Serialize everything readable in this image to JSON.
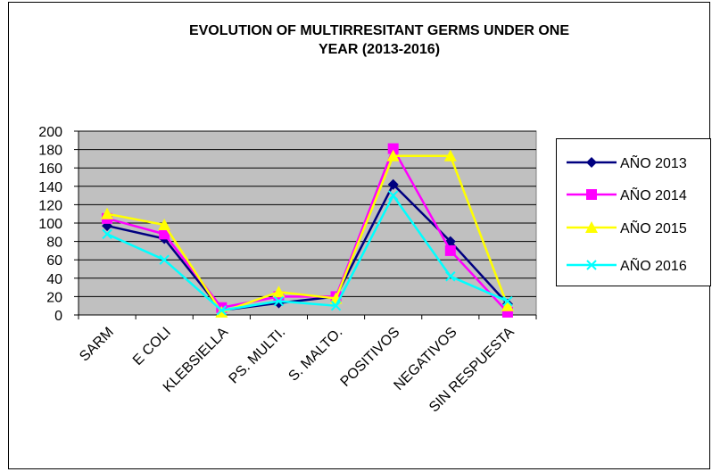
{
  "chart_data": {
    "type": "line",
    "title": [
      "EVOLUTION OF MULTIRRESITANT  GERMS UNDER ONE",
      "YEAR (2013-2016)"
    ],
    "categories": [
      "SARM",
      "E COLI",
      "KLEBSIELLA",
      "PS. MULTI.",
      "S. MALTO.",
      "POSITIVOS",
      "NEGATIVOS",
      "SIN RESPUESTA"
    ],
    "series": [
      {
        "name": "AÑO 2013",
        "color": "#000080",
        "marker": "diamond",
        "values": [
          97,
          83,
          5,
          13,
          20,
          142,
          80,
          12
        ]
      },
      {
        "name": "AÑO 2014",
        "color": "#ff00ff",
        "marker": "square",
        "values": [
          105,
          88,
          8,
          20,
          20,
          181,
          70,
          3
        ]
      },
      {
        "name": "AÑO 2015",
        "color": "#ffff00",
        "marker": "triangle",
        "values": [
          110,
          98,
          3,
          25,
          18,
          173,
          173,
          10
        ]
      },
      {
        "name": "AÑO 2016",
        "color": "#00ffff",
        "marker": "x",
        "values": [
          88,
          60,
          5,
          15,
          10,
          130,
          42,
          15
        ]
      }
    ],
    "ylim": [
      0,
      200
    ],
    "yticks": [
      0,
      20,
      40,
      60,
      80,
      100,
      120,
      140,
      160,
      180,
      200
    ],
    "grid": true,
    "legend": "right",
    "plot_background": "#c0c0c0"
  }
}
